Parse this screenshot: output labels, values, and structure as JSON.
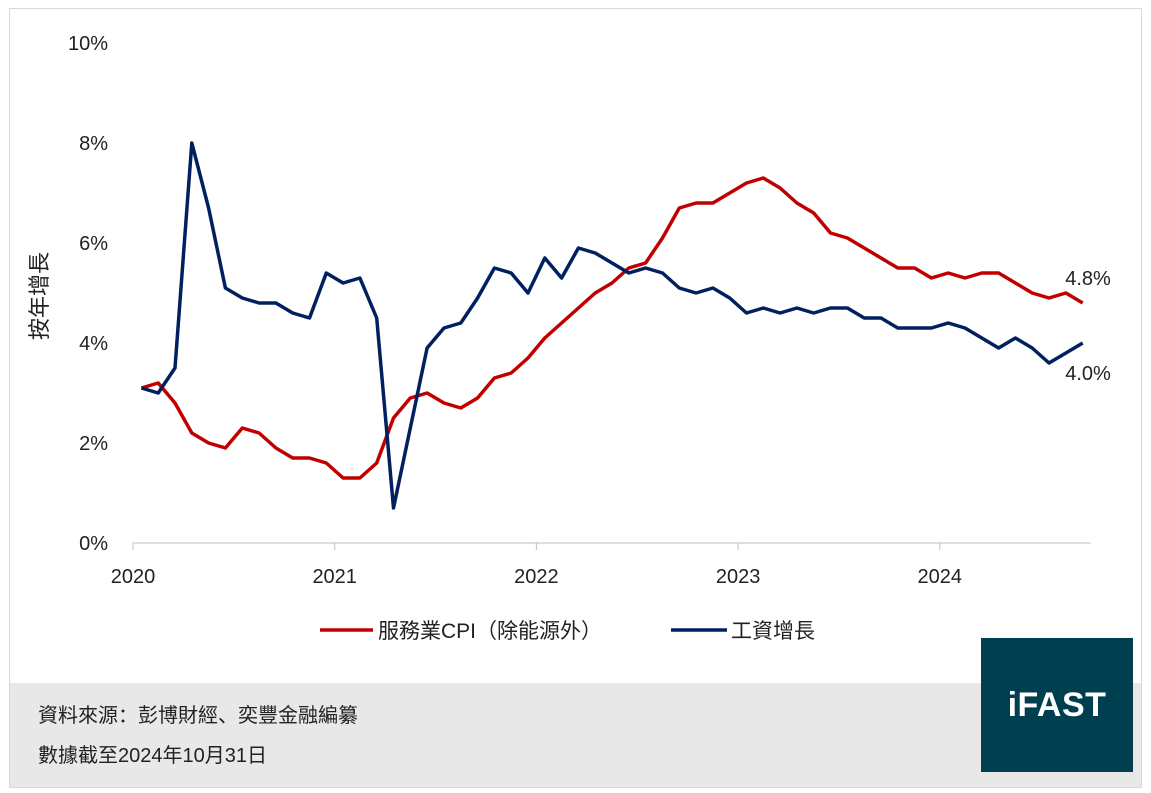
{
  "chart_data": {
    "type": "line",
    "title": "",
    "xlabel": "",
    "ylabel": "按年增長",
    "x_start": "2020-01",
    "x_step": "month",
    "x_tick_labels": [
      "2020",
      "2021",
      "2022",
      "2023",
      "2024"
    ],
    "y_tick_labels": [
      "0%",
      "2%",
      "4%",
      "6%",
      "8%",
      "10%"
    ],
    "ylim": [
      0,
      10
    ],
    "grid": false,
    "legend_position": "bottom",
    "series": [
      {
        "name": "服務業CPI（除能源外）",
        "color": "#c00000",
        "end_label": "4.8%",
        "values": [
          3.1,
          3.2,
          2.8,
          2.2,
          2.0,
          1.9,
          2.3,
          2.2,
          1.9,
          1.7,
          1.7,
          1.6,
          1.3,
          1.3,
          1.6,
          2.5,
          2.9,
          3.0,
          2.8,
          2.7,
          2.9,
          3.3,
          3.4,
          3.7,
          4.1,
          4.4,
          4.7,
          5.0,
          5.2,
          5.5,
          5.6,
          6.1,
          6.7,
          6.8,
          6.8,
          7.0,
          7.2,
          7.3,
          7.1,
          6.8,
          6.6,
          6.2,
          6.1,
          5.9,
          5.7,
          5.5,
          5.5,
          5.3,
          5.4,
          5.3,
          5.4,
          5.4,
          5.2,
          5.0,
          4.9,
          5.0,
          4.8
        ]
      },
      {
        "name": "工資增長",
        "color": "#002060",
        "end_label": "4.0%",
        "values": [
          3.1,
          3.0,
          3.5,
          8.0,
          6.7,
          5.1,
          4.9,
          4.8,
          4.8,
          4.6,
          4.5,
          5.4,
          5.2,
          5.3,
          4.5,
          0.7,
          2.3,
          3.9,
          4.3,
          4.4,
          4.9,
          5.5,
          5.4,
          5.0,
          5.7,
          5.3,
          5.9,
          5.8,
          5.6,
          5.4,
          5.5,
          5.4,
          5.1,
          5.0,
          5.1,
          4.9,
          4.6,
          4.7,
          4.6,
          4.7,
          4.6,
          4.7,
          4.7,
          4.5,
          4.5,
          4.3,
          4.3,
          4.3,
          4.4,
          4.3,
          4.1,
          3.9,
          4.1,
          3.9,
          3.6,
          3.8,
          4.0
        ]
      }
    ]
  },
  "footer": {
    "source": "資料來源：彭博財經、奕豐金融編纂",
    "date_note": "數據截至2024年10月31日",
    "logo_text": "iFAST",
    "logo_color": "#003f4f"
  }
}
